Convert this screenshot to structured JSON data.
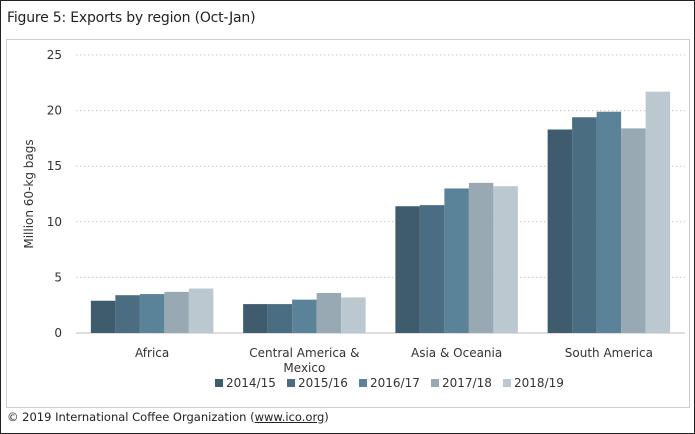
{
  "title": "Figure 5: Exports by region (Oct-Jan)",
  "copyright": {
    "prefix": "© 2019 International Coffee Organization (",
    "link": "www.ico.org",
    "suffix": ")"
  },
  "chart_data": {
    "type": "bar",
    "title": "Figure 5: Exports by region (Oct-Jan)",
    "ylabel": "Million 60-kg bags",
    "xlabel": "",
    "ylim": [
      0,
      25
    ],
    "yticks": [
      0,
      5,
      10,
      15,
      20,
      25
    ],
    "grid": true,
    "legend": "bottom",
    "categories": [
      "Africa",
      "Central America & Mexico",
      "Asia & Oceania",
      "South America"
    ],
    "category_lines": [
      [
        "Africa"
      ],
      [
        "Central America &",
        "Mexico"
      ],
      [
        "Asia & Oceania"
      ],
      [
        "South America"
      ]
    ],
    "series": [
      {
        "name": "2014/15",
        "color": "#3f5c6e",
        "values": [
          2.9,
          2.6,
          11.4,
          18.3
        ]
      },
      {
        "name": "2015/16",
        "color": "#4a6d82",
        "values": [
          3.4,
          2.6,
          11.5,
          19.4
        ]
      },
      {
        "name": "2016/17",
        "color": "#5a8299",
        "values": [
          3.5,
          3.0,
          13.0,
          19.9
        ]
      },
      {
        "name": "2017/18",
        "color": "#98a9b3",
        "values": [
          3.7,
          3.6,
          13.5,
          18.4
        ]
      },
      {
        "name": "2018/19",
        "color": "#bcc8cf",
        "values": [
          4.0,
          3.2,
          13.2,
          21.7
        ]
      }
    ]
  }
}
